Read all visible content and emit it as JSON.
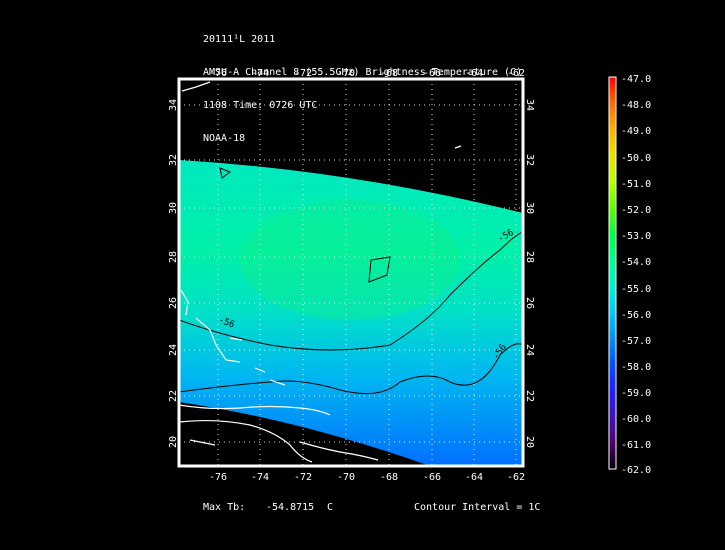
{
  "header": {
    "line1": "20111¹L 2011",
    "line2": "AMSU-A Channel 8 (55.5GHz) Brightness Temperature (C)",
    "line3": "1108 Time: 0726 UTC",
    "line4": "NOAA-18"
  },
  "map": {
    "lon_ticks": [
      "-76",
      "-74",
      "-72",
      "-70",
      "-68",
      "-66",
      "-64",
      "-62"
    ],
    "lat_ticks": [
      "20",
      "22",
      "24",
      "26",
      "28",
      "30",
      "32",
      "34"
    ],
    "contour_labels": [
      "-56",
      "-56",
      "-56"
    ]
  },
  "colorbar": {
    "labels": [
      "-47.0",
      "-48.0",
      "-49.0",
      "-50.0",
      "-51.0",
      "-52.0",
      "-53.0",
      "-54.0",
      "-55.0",
      "-56.0",
      "-57.0",
      "-58.0",
      "-59.0",
      "-60.0",
      "-61.0",
      "-62.0"
    ],
    "colors": [
      "#ff0000",
      "#ff6a00",
      "#ffb000",
      "#e8e000",
      "#b8ff00",
      "#60ff00",
      "#00ff40",
      "#00ff90",
      "#00f0d0",
      "#00c8ff",
      "#0090ff",
      "#0050ff",
      "#2020ff",
      "#4010c0",
      "#500070",
      "#000000"
    ]
  },
  "footer": {
    "max_label": "Max Tb:",
    "max_value": "-54.8715",
    "max_unit": "C",
    "contour_interval": "Contour Interval = 1C"
  }
}
